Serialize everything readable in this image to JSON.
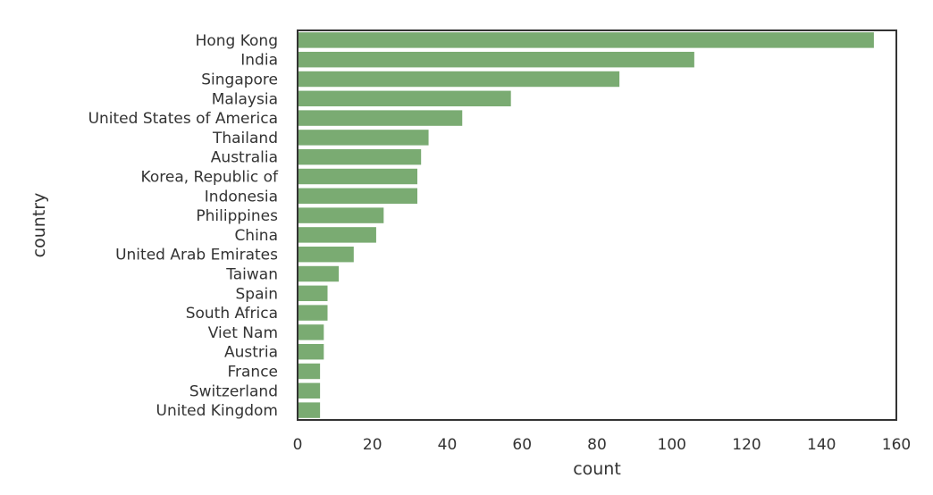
{
  "chart_data": {
    "type": "bar",
    "orientation": "horizontal",
    "title": "",
    "xlabel": "count",
    "ylabel": "country",
    "xlim": [
      0,
      160
    ],
    "xticks": [
      0,
      20,
      40,
      60,
      80,
      100,
      120,
      140,
      160
    ],
    "grid": false,
    "legend": "none",
    "bar_color": "#7aab72",
    "categories": [
      "Hong Kong",
      "India",
      "Singapore",
      "Malaysia",
      "United States of America",
      "Thailand",
      "Australia",
      "Korea, Republic of",
      "Indonesia",
      "Philippines",
      "China",
      "United Arab Emirates",
      "Taiwan",
      "Spain",
      "South Africa",
      "Viet Nam",
      "Austria",
      "France",
      "Switzerland",
      "United Kingdom"
    ],
    "values": [
      154,
      106,
      86,
      57,
      44,
      35,
      33,
      32,
      32,
      23,
      21,
      15,
      11,
      8,
      8,
      7,
      7,
      6,
      6,
      6
    ]
  }
}
